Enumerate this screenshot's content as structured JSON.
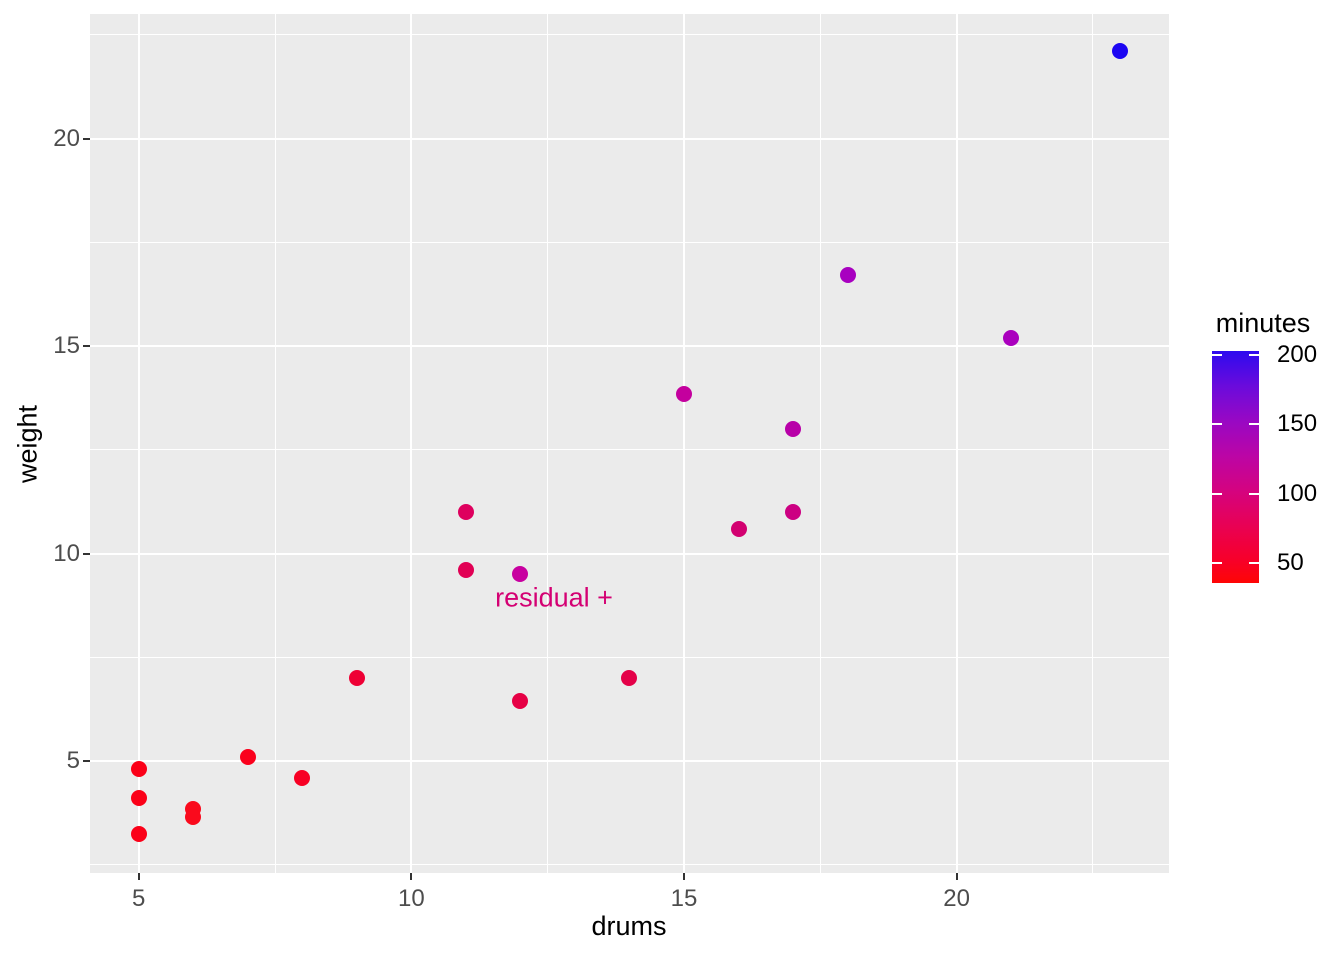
{
  "chart_data": {
    "type": "scatter",
    "title": "",
    "xlabel": "drums",
    "ylabel": "weight",
    "x_ticks": [
      5,
      10,
      15,
      20
    ],
    "y_ticks": [
      5,
      10,
      15,
      20
    ],
    "xlim": [
      4.1,
      23.9
    ],
    "ylim": [
      2.3,
      23.0
    ],
    "grid": {
      "major": true,
      "minor": true,
      "color": "#FFFFFF",
      "panel_bg": "#EBEBEB"
    },
    "legend_position": "right",
    "points": [
      {
        "drums": 5,
        "weight": 4.8,
        "minutes_est": 52,
        "color": "#FB0018"
      },
      {
        "drums": 5,
        "weight": 4.1,
        "minutes_est": 52,
        "color": "#FB0018"
      },
      {
        "drums": 5,
        "weight": 3.25,
        "minutes_est": 50,
        "color": "#FB0018"
      },
      {
        "drums": 6,
        "weight": 3.85,
        "minutes_est": 55,
        "color": "#FA0A1C"
      },
      {
        "drums": 6,
        "weight": 3.65,
        "minutes_est": 55,
        "color": "#FA0A1C"
      },
      {
        "drums": 7,
        "weight": 5.1,
        "minutes_est": 53,
        "color": "#FA001C"
      },
      {
        "drums": 8,
        "weight": 4.6,
        "minutes_est": 58,
        "color": "#F70024"
      },
      {
        "drums": 9,
        "weight": 7.0,
        "minutes_est": 75,
        "color": "#EE0034"
      },
      {
        "drums": 11,
        "weight": 9.6,
        "minutes_est": 92,
        "color": "#E10054"
      },
      {
        "drums": 11,
        "weight": 11.0,
        "minutes_est": 95,
        "color": "#DE005E"
      },
      {
        "drums": 12,
        "weight": 6.45,
        "minutes_est": 85,
        "color": "#E60045"
      },
      {
        "drums": 12,
        "weight": 9.5,
        "minutes_est": 125,
        "color": "#C800A0"
      },
      {
        "drums": 14,
        "weight": 7.0,
        "minutes_est": 86,
        "color": "#E40048"
      },
      {
        "drums": 15,
        "weight": 13.85,
        "minutes_est": 130,
        "color": "#C4009E"
      },
      {
        "drums": 16,
        "weight": 10.6,
        "minutes_est": 105,
        "color": "#D20070"
      },
      {
        "drums": 17,
        "weight": 11.0,
        "minutes_est": 112,
        "color": "#CC0082"
      },
      {
        "drums": 17,
        "weight": 13.0,
        "minutes_est": 140,
        "color": "#B800A8"
      },
      {
        "drums": 18,
        "weight": 16.7,
        "minutes_est": 158,
        "color": "#A800C0"
      },
      {
        "drums": 21,
        "weight": 15.2,
        "minutes_est": 156,
        "color": "#AA00BE"
      },
      {
        "drums": 23,
        "weight": 22.1,
        "minutes_est": 205,
        "color": "#1C06F2"
      }
    ],
    "color_scale": {
      "title": "minutes",
      "ticks": [
        200,
        150,
        100,
        50
      ],
      "low_color": "#FF0000",
      "high_color": "#0000FF",
      "gradient_top_to_bottom": [
        {
          "pos": 0,
          "color": "#2E0BEF"
        },
        {
          "pos": 15,
          "color": "#6A0BDC"
        },
        {
          "pos": 30,
          "color": "#9808C4"
        },
        {
          "pos": 45,
          "color": "#BB05A6"
        },
        {
          "pos": 60,
          "color": "#D40380"
        },
        {
          "pos": 75,
          "color": "#E80155"
        },
        {
          "pos": 90,
          "color": "#F7002A"
        },
        {
          "pos": 100,
          "color": "#FE0505"
        }
      ]
    },
    "annotation": {
      "text": "residual +",
      "x": 12.6,
      "y": 8.9,
      "color": "#D40073"
    }
  },
  "colors": {
    "page_bg": "#FFFFFF",
    "panel_bg": "#EBEBEB",
    "gridline": "#FFFFFF",
    "tick_label": "#4D4D4D",
    "axis_title": "#000000",
    "tick_mark": "#333333"
  }
}
